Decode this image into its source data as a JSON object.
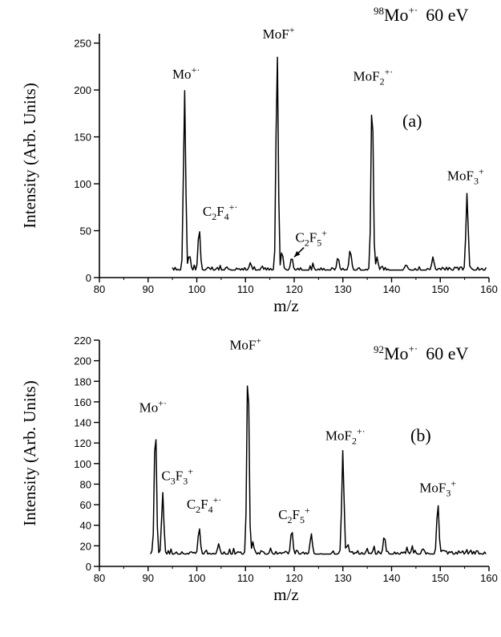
{
  "chart_data": [
    {
      "type": "line",
      "panel_label": "(a)",
      "corner_label": {
        "mass": "98",
        "ion": "Mo",
        "charge": "+·",
        "energy": "60 eV"
      },
      "xlabel": "m/z",
      "ylabel": "Intensity (Arb. Units)",
      "xlim": [
        80,
        160
      ],
      "ylim": [
        0,
        260
      ],
      "x_ticks": [
        80,
        90,
        100,
        110,
        120,
        130,
        140,
        150,
        160
      ],
      "y_ticks": [
        0,
        50,
        100,
        150,
        200,
        250
      ],
      "baseline": 8,
      "x_start": 95,
      "x_end": 159.5,
      "peaks": [
        {
          "x": 97.5,
          "y": 200
        },
        {
          "x": 98.5,
          "y": 25
        },
        {
          "x": 100.5,
          "y": 53
        },
        {
          "x": 111,
          "y": 16
        },
        {
          "x": 116.5,
          "y": 243
        },
        {
          "x": 117.5,
          "y": 28
        },
        {
          "x": 119.5,
          "y": 22
        },
        {
          "x": 129,
          "y": 22
        },
        {
          "x": 131.5,
          "y": 30
        },
        {
          "x": 136,
          "y": 198
        },
        {
          "x": 137,
          "y": 22
        },
        {
          "x": 143,
          "y": 14
        },
        {
          "x": 148.5,
          "y": 22
        },
        {
          "x": 155.5,
          "y": 90
        }
      ],
      "labels": [
        {
          "base": "Mo",
          "parts": [
            {
              "t": "+·",
              "p": "sup"
            }
          ],
          "x": 97.8,
          "y": 212
        },
        {
          "base": "MoF",
          "parts": [
            {
              "t": "+",
              "p": "sup"
            }
          ],
          "x": 116.8,
          "y": 255
        },
        {
          "base": "MoF",
          "parts": [
            {
              "t": "2",
              "p": "sub"
            },
            {
              "t": "+·",
              "p": "sup"
            }
          ],
          "x": 136.2,
          "y": 210
        },
        {
          "base": "MoF",
          "parts": [
            {
              "t": "3",
              "p": "sub"
            },
            {
              "t": "+",
              "p": "sup"
            }
          ],
          "x": 155.2,
          "y": 104
        },
        {
          "base": "C",
          "parts": [
            {
              "t": "2",
              "p": "sub"
            },
            {
              "t": "F",
              "p": "base"
            },
            {
              "t": "4",
              "p": "sub"
            },
            {
              "t": "+·",
              "p": "sup"
            }
          ],
          "x": 104.8,
          "y": 66
        },
        {
          "base": "C",
          "parts": [
            {
              "t": "2",
              "p": "sub"
            },
            {
              "t": "F",
              "p": "base"
            },
            {
              "t": "5",
              "p": "sub"
            },
            {
              "t": "+",
              "p": "sup"
            }
          ],
          "x": 123.5,
          "y": 38
        }
      ],
      "arrow": {
        "from": [
          122,
          32
        ],
        "to": [
          120,
          22
        ]
      }
    },
    {
      "type": "line",
      "panel_label": "(b)",
      "corner_label": {
        "mass": "92",
        "ion": "Mo",
        "charge": "+·",
        "energy": "60 eV"
      },
      "xlabel": "m/z",
      "ylabel": "Intensity (Arb. Units)",
      "xlim": [
        80,
        160
      ],
      "ylim": [
        0,
        220
      ],
      "x_ticks": [
        80,
        90,
        100,
        110,
        120,
        130,
        140,
        150,
        160
      ],
      "y_ticks": [
        0,
        20,
        40,
        60,
        80,
        100,
        120,
        140,
        160,
        180,
        200,
        220
      ],
      "baseline": 12,
      "x_start": 90.5,
      "x_end": 159.5,
      "peaks": [
        {
          "x": 91.5,
          "y": 140
        },
        {
          "x": 93,
          "y": 72
        },
        {
          "x": 100.5,
          "y": 38
        },
        {
          "x": 104.5,
          "y": 22
        },
        {
          "x": 110.5,
          "y": 200
        },
        {
          "x": 111.5,
          "y": 24
        },
        {
          "x": 119.5,
          "y": 36
        },
        {
          "x": 123.5,
          "y": 32
        },
        {
          "x": 130,
          "y": 113
        },
        {
          "x": 131,
          "y": 22
        },
        {
          "x": 138.5,
          "y": 30
        },
        {
          "x": 149.5,
          "y": 62
        }
      ],
      "labels": [
        {
          "base": "Mo",
          "parts": [
            {
              "t": "+·",
              "p": "sup"
            }
          ],
          "x": 91,
          "y": 150
        },
        {
          "base": "C",
          "parts": [
            {
              "t": "3",
              "p": "sub"
            },
            {
              "t": "F",
              "p": "base"
            },
            {
              "t": "3",
              "p": "sub"
            },
            {
              "t": "+",
              "p": "sup"
            }
          ],
          "x": 96,
          "y": 84
        },
        {
          "base": "C",
          "parts": [
            {
              "t": "2",
              "p": "sub"
            },
            {
              "t": "F",
              "p": "base"
            },
            {
              "t": "4",
              "p": "sub"
            },
            {
              "t": "+·",
              "p": "sup"
            }
          ],
          "x": 101.5,
          "y": 56
        },
        {
          "base": "MoF",
          "parts": [
            {
              "t": "+",
              "p": "sup"
            }
          ],
          "x": 110,
          "y": 211
        },
        {
          "base": "C",
          "parts": [
            {
              "t": "2",
              "p": "sub"
            },
            {
              "t": "F",
              "p": "base"
            },
            {
              "t": "5",
              "p": "sub"
            },
            {
              "t": "+",
              "p": "sup"
            }
          ],
          "x": 120,
          "y": 46
        },
        {
          "base": "MoF",
          "parts": [
            {
              "t": "2",
              "p": "sub"
            },
            {
              "t": "+·",
              "p": "sup"
            }
          ],
          "x": 130.5,
          "y": 123
        },
        {
          "base": "MoF",
          "parts": [
            {
              "t": "3",
              "p": "sub"
            },
            {
              "t": "+",
              "p": "sup"
            }
          ],
          "x": 149.5,
          "y": 72
        }
      ]
    }
  ]
}
